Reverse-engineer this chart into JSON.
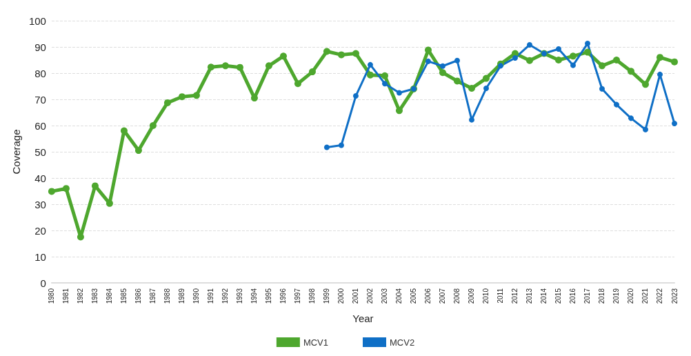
{
  "chart_data": {
    "type": "line",
    "xlabel": "Year",
    "ylabel": "Coverage",
    "categories": [
      "1980",
      "1981",
      "1982",
      "1983",
      "1984",
      "1985",
      "1986",
      "1987",
      "1988",
      "1989",
      "1990",
      "1991",
      "1992",
      "1993",
      "1994",
      "1995",
      "1996",
      "1997",
      "1998",
      "1999",
      "2000",
      "2001",
      "2002",
      "2003",
      "2004",
      "2005",
      "2006",
      "2007",
      "2008",
      "2009",
      "2010",
      "2011",
      "2012",
      "2013",
      "2014",
      "2015",
      "2016",
      "2017",
      "2018",
      "2019",
      "2020",
      "2021",
      "2022",
      "2023"
    ],
    "series": [
      {
        "name": "MCV1",
        "color": "#4ea72e",
        "values": [
          34.9,
          36,
          17.5,
          37,
          30.3,
          58,
          50.5,
          60,
          68.7,
          71,
          71.5,
          82.3,
          82.8,
          82.2,
          70.5,
          82.8,
          86.5,
          76,
          80.5,
          88.3,
          87,
          87.5,
          79.3,
          79,
          65.7,
          74,
          88.8,
          80.2,
          77,
          74.2,
          78,
          83.5,
          87.5,
          84.8,
          87.5,
          85,
          86.5,
          88,
          82.8,
          85,
          80.7,
          75.7,
          86,
          84.3
        ]
      },
      {
        "name": "MCV2",
        "color": "#0f6fc6",
        "values": [
          null,
          null,
          null,
          null,
          null,
          null,
          null,
          null,
          null,
          null,
          null,
          null,
          null,
          null,
          null,
          null,
          null,
          null,
          null,
          51.7,
          52.5,
          71.3,
          83.2,
          76,
          72.5,
          74,
          84.5,
          82.7,
          84.8,
          62.2,
          74.2,
          82.8,
          85.8,
          90.8,
          87.5,
          89.2,
          83,
          91.3,
          74,
          68,
          62.8,
          58.5,
          79.5,
          60.8
        ]
      }
    ],
    "ylim": [
      0,
      100
    ],
    "yticks": [
      0,
      10,
      20,
      30,
      40,
      50,
      60,
      70,
      80,
      90,
      100
    ],
    "grid": "y",
    "legend": "bottom",
    "marker": "circle",
    "line_style": "solid"
  }
}
